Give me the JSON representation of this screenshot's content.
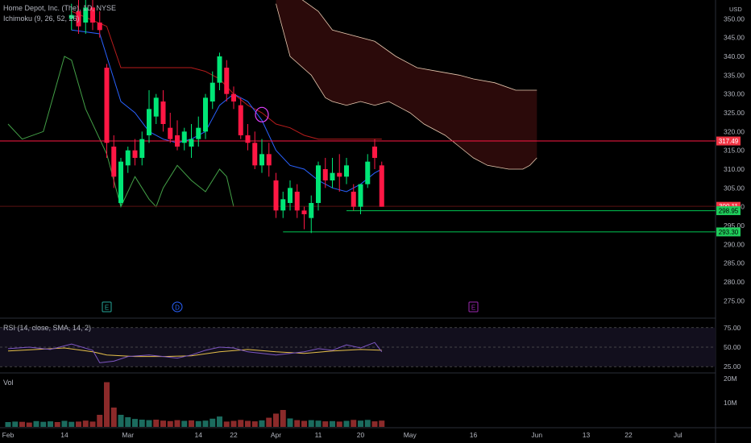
{
  "header": {
    "symbol_title": "Home Depot, Inc. (The), 1D, NYSE",
    "ichimoku_label": "Ichimoku (9, 26, 52, 26)",
    "currency": "USD"
  },
  "rsi_panel": {
    "label": "RSI (14, close, SMA, 14, 2)"
  },
  "volume_panel": {
    "label": "Vol"
  },
  "colors": {
    "background": "#000000",
    "bull": "#00e676",
    "bear": "#ff1744",
    "cloud_fill": "#2b0a0a",
    "cloud_edge": "#e8c9b0",
    "tenkan": "#2962ff",
    "kijun": "#b71c1c",
    "lagging": "#43a047",
    "support_line": "#00c853",
    "rsi_line": "#7e57c2",
    "rsi_sma": "#e6c04a",
    "vol_bull": "#1b6b5e",
    "vol_bear": "#8b2a2a",
    "axis_text": "#b2b5be"
  },
  "chart_data": {
    "type": "candlestick",
    "title": "Home Depot, Inc. (The), 1D, NYSE",
    "price_axis_ticks": [
      350,
      345,
      340,
      335,
      330,
      325,
      320,
      315,
      310,
      305,
      300,
      295,
      290,
      285,
      280,
      275
    ],
    "price_ylim": [
      271,
      355
    ],
    "x_tick_labels": [
      {
        "label": "Feb",
        "index": 0
      },
      {
        "label": "14",
        "index": 8
      },
      {
        "label": "Mar",
        "index": 17
      },
      {
        "label": "14",
        "index": 27
      },
      {
        "label": "22",
        "index": 32
      },
      {
        "label": "Apr",
        "index": 38
      },
      {
        "label": "11",
        "index": 44
      },
      {
        "label": "20",
        "index": 50
      },
      {
        "label": "May",
        "index": 57
      },
      {
        "label": "16",
        "index": 66
      },
      {
        "label": "Jun",
        "index": 75
      },
      {
        "label": "13",
        "index": 82
      },
      {
        "label": "22",
        "index": 88
      },
      {
        "label": "Jul",
        "index": 95
      }
    ],
    "candles": [
      {
        "i": 9,
        "o": 350,
        "h": 354,
        "l": 347,
        "c": 351
      },
      {
        "i": 10,
        "o": 352,
        "h": 356,
        "l": 346,
        "c": 348
      },
      {
        "i": 11,
        "o": 349,
        "h": 355,
        "l": 346,
        "c": 353
      },
      {
        "i": 12,
        "o": 353,
        "h": 355,
        "l": 347,
        "c": 349
      },
      {
        "i": 13,
        "o": 349,
        "h": 352,
        "l": 345,
        "c": 347
      },
      {
        "i": 14,
        "o": 337,
        "h": 338,
        "l": 313,
        "c": 317
      },
      {
        "i": 15,
        "o": 316,
        "h": 319,
        "l": 305,
        "c": 308
      },
      {
        "i": 16,
        "o": 301,
        "h": 313,
        "l": 300,
        "c": 312
      },
      {
        "i": 17,
        "o": 311,
        "h": 316,
        "l": 309,
        "c": 315
      },
      {
        "i": 18,
        "o": 315,
        "h": 318,
        "l": 311,
        "c": 313
      },
      {
        "i": 19,
        "o": 313,
        "h": 320,
        "l": 311,
        "c": 318
      },
      {
        "i": 20,
        "o": 319,
        "h": 331,
        "l": 317,
        "c": 326
      },
      {
        "i": 21,
        "o": 324,
        "h": 330,
        "l": 322,
        "c": 329
      },
      {
        "i": 22,
        "o": 328,
        "h": 331,
        "l": 320,
        "c": 322
      },
      {
        "i": 23,
        "o": 321,
        "h": 325,
        "l": 317,
        "c": 318
      },
      {
        "i": 24,
        "o": 319,
        "h": 323,
        "l": 315,
        "c": 316
      },
      {
        "i": 25,
        "o": 317,
        "h": 321,
        "l": 315,
        "c": 320
      },
      {
        "i": 26,
        "o": 316,
        "h": 322,
        "l": 313,
        "c": 318
      },
      {
        "i": 27,
        "o": 318,
        "h": 324,
        "l": 316,
        "c": 321
      },
      {
        "i": 28,
        "o": 320,
        "h": 330,
        "l": 318,
        "c": 329
      },
      {
        "i": 29,
        "o": 328,
        "h": 336,
        "l": 326,
        "c": 333
      },
      {
        "i": 30,
        "o": 333,
        "h": 341,
        "l": 331,
        "c": 340
      },
      {
        "i": 31,
        "o": 337,
        "h": 339,
        "l": 328,
        "c": 330
      },
      {
        "i": 32,
        "o": 330,
        "h": 332,
        "l": 326,
        "c": 328
      },
      {
        "i": 33,
        "o": 327,
        "h": 329,
        "l": 318,
        "c": 319
      },
      {
        "i": 34,
        "o": 319,
        "h": 322,
        "l": 315,
        "c": 317
      },
      {
        "i": 35,
        "o": 317,
        "h": 320,
        "l": 310,
        "c": 311
      },
      {
        "i": 36,
        "o": 311,
        "h": 318,
        "l": 309,
        "c": 314
      },
      {
        "i": 37,
        "o": 314,
        "h": 317,
        "l": 308,
        "c": 311
      },
      {
        "i": 38,
        "o": 307,
        "h": 309,
        "l": 297,
        "c": 299
      },
      {
        "i": 39,
        "o": 299,
        "h": 304,
        "l": 297,
        "c": 302
      },
      {
        "i": 40,
        "o": 301,
        "h": 307,
        "l": 299,
        "c": 305
      },
      {
        "i": 41,
        "o": 304,
        "h": 306,
        "l": 297,
        "c": 299
      },
      {
        "i": 42,
        "o": 299,
        "h": 300,
        "l": 294,
        "c": 298
      },
      {
        "i": 43,
        "o": 297,
        "h": 303,
        "l": 293,
        "c": 301
      },
      {
        "i": 44,
        "o": 301,
        "h": 312,
        "l": 299,
        "c": 311
      },
      {
        "i": 45,
        "o": 310,
        "h": 313,
        "l": 305,
        "c": 307
      },
      {
        "i": 46,
        "o": 307,
        "h": 313,
        "l": 305,
        "c": 309
      },
      {
        "i": 47,
        "o": 309,
        "h": 314,
        "l": 304,
        "c": 308
      },
      {
        "i": 48,
        "o": 308,
        "h": 313,
        "l": 306,
        "c": 311
      },
      {
        "i": 49,
        "o": 304,
        "h": 306,
        "l": 299,
        "c": 300
      },
      {
        "i": 50,
        "o": 300,
        "h": 306,
        "l": 298,
        "c": 306
      },
      {
        "i": 51,
        "o": 306,
        "h": 314,
        "l": 305,
        "c": 312
      },
      {
        "i": 52,
        "o": 316,
        "h": 318,
        "l": 310,
        "c": 313
      },
      {
        "i": 53,
        "o": 311,
        "h": 312,
        "l": 300,
        "c": 300
      }
    ],
    "ichimoku": {
      "tenkan": [
        [
          9,
          347
        ],
        [
          13,
          346
        ],
        [
          14,
          340
        ],
        [
          16,
          328
        ],
        [
          18,
          325
        ],
        [
          20,
          320
        ],
        [
          22,
          318
        ],
        [
          24,
          317
        ],
        [
          26,
          318
        ],
        [
          28,
          320
        ],
        [
          30,
          327
        ],
        [
          32,
          330
        ],
        [
          34,
          328
        ],
        [
          36,
          323
        ],
        [
          38,
          315
        ],
        [
          40,
          311
        ],
        [
          42,
          310
        ],
        [
          44,
          307
        ],
        [
          46,
          305
        ],
        [
          48,
          304
        ],
        [
          50,
          306
        ],
        [
          52,
          309
        ],
        [
          53,
          310
        ]
      ],
      "kijun": [
        [
          9,
          352
        ],
        [
          14,
          348
        ],
        [
          16,
          337
        ],
        [
          26,
          337
        ],
        [
          28,
          336
        ],
        [
          30,
          334
        ],
        [
          32,
          330
        ],
        [
          34,
          327
        ],
        [
          36,
          325
        ],
        [
          38,
          322
        ],
        [
          40,
          321
        ],
        [
          42,
          319
        ],
        [
          44,
          318
        ],
        [
          48,
          318
        ],
        [
          53,
          318
        ]
      ],
      "lagging": [
        [
          0,
          322
        ],
        [
          2,
          318
        ],
        [
          5,
          320
        ],
        [
          8,
          340
        ],
        [
          9,
          339
        ],
        [
          11,
          326
        ],
        [
          14,
          314
        ],
        [
          16,
          300
        ],
        [
          18,
          308
        ],
        [
          20,
          302
        ],
        [
          21,
          300
        ],
        [
          22,
          305
        ],
        [
          24,
          311
        ],
        [
          26,
          307
        ],
        [
          28,
          304
        ],
        [
          30,
          310
        ],
        [
          31,
          308
        ],
        [
          32,
          300
        ]
      ],
      "cloud_upper": [
        [
          38,
          362
        ],
        [
          41,
          356
        ],
        [
          44,
          352
        ],
        [
          46,
          347
        ],
        [
          52,
          344
        ],
        [
          55,
          340
        ],
        [
          58,
          337
        ],
        [
          61,
          336
        ],
        [
          64,
          335
        ],
        [
          66,
          334
        ],
        [
          69,
          333
        ],
        [
          72,
          331
        ],
        [
          75,
          331
        ]
      ],
      "cloud_lower": [
        [
          38,
          354
        ],
        [
          40,
          340
        ],
        [
          43,
          335
        ],
        [
          45,
          329
        ],
        [
          46,
          328
        ],
        [
          48,
          327
        ],
        [
          50,
          328
        ],
        [
          52,
          327
        ],
        [
          54,
          328
        ],
        [
          56,
          326
        ],
        [
          57,
          325
        ],
        [
          59,
          322
        ],
        [
          62,
          319
        ],
        [
          64,
          316
        ],
        [
          66,
          313
        ],
        [
          68,
          311
        ],
        [
          71,
          310
        ],
        [
          73,
          310
        ],
        [
          74,
          311
        ],
        [
          75,
          313
        ]
      ]
    },
    "horizontal_levels": [
      {
        "price": 317.49,
        "label": "317.49",
        "style": "red"
      },
      {
        "price": 300.11,
        "label": "300.11",
        "style": "red"
      },
      {
        "price": 298.95,
        "label": "298.95",
        "style": "green"
      },
      {
        "price": 293.3,
        "label": "293.30",
        "style": "green"
      }
    ],
    "event_markers": [
      {
        "index": 14,
        "letter": "E",
        "color": "#26a69a"
      },
      {
        "index": 24,
        "letter": "D",
        "color": "#2962ff"
      },
      {
        "index": 66,
        "letter": "E",
        "color": "#9c27b0"
      }
    ],
    "rsi": {
      "ticks": [
        75,
        50,
        25
      ],
      "ylim": [
        18,
        82
      ],
      "values": [
        [
          0,
          48
        ],
        [
          3,
          50
        ],
        [
          6,
          47
        ],
        [
          9,
          54
        ],
        [
          12,
          46
        ],
        [
          13,
          30
        ],
        [
          15,
          32
        ],
        [
          17,
          38
        ],
        [
          20,
          40
        ],
        [
          22,
          38
        ],
        [
          24,
          36
        ],
        [
          26,
          40
        ],
        [
          28,
          46
        ],
        [
          30,
          50
        ],
        [
          32,
          49
        ],
        [
          34,
          44
        ],
        [
          36,
          42
        ],
        [
          38,
          40
        ],
        [
          40,
          42
        ],
        [
          42,
          44
        ],
        [
          44,
          48
        ],
        [
          46,
          46
        ],
        [
          48,
          53
        ],
        [
          50,
          49
        ],
        [
          52,
          56
        ],
        [
          53,
          44
        ]
      ],
      "sma": [
        [
          0,
          45
        ],
        [
          4,
          47
        ],
        [
          8,
          49
        ],
        [
          12,
          44
        ],
        [
          14,
          40
        ],
        [
          18,
          38
        ],
        [
          22,
          38
        ],
        [
          26,
          39
        ],
        [
          30,
          44
        ],
        [
          34,
          47
        ],
        [
          38,
          44
        ],
        [
          42,
          42
        ],
        [
          46,
          45
        ],
        [
          50,
          47
        ],
        [
          53,
          46
        ]
      ]
    },
    "volume": {
      "ticks": [
        "20M",
        "10M"
      ],
      "ylim": [
        0,
        22
      ],
      "bars": [
        {
          "i": 0,
          "v": 2,
          "d": "up"
        },
        {
          "i": 1,
          "v": 2.2,
          "d": "up"
        },
        {
          "i": 2,
          "v": 2.1,
          "d": "dn"
        },
        {
          "i": 3,
          "v": 1.8,
          "d": "dn"
        },
        {
          "i": 4,
          "v": 2.4,
          "d": "up"
        },
        {
          "i": 5,
          "v": 2.1,
          "d": "up"
        },
        {
          "i": 6,
          "v": 2.3,
          "d": "up"
        },
        {
          "i": 7,
          "v": 2,
          "d": "dn"
        },
        {
          "i": 8,
          "v": 2.5,
          "d": "up"
        },
        {
          "i": 9,
          "v": 2.1,
          "d": "up"
        },
        {
          "i": 10,
          "v": 2.2,
          "d": "dn"
        },
        {
          "i": 11,
          "v": 2.6,
          "d": "dn"
        },
        {
          "i": 12,
          "v": 2.2,
          "d": "dn"
        },
        {
          "i": 13,
          "v": 5,
          "d": "dn"
        },
        {
          "i": 14,
          "v": 18.5,
          "d": "dn"
        },
        {
          "i": 15,
          "v": 8,
          "d": "dn"
        },
        {
          "i": 16,
          "v": 5,
          "d": "up"
        },
        {
          "i": 17,
          "v": 4,
          "d": "up"
        },
        {
          "i": 18,
          "v": 3.3,
          "d": "up"
        },
        {
          "i": 19,
          "v": 3,
          "d": "up"
        },
        {
          "i": 20,
          "v": 2.8,
          "d": "up"
        },
        {
          "i": 21,
          "v": 3,
          "d": "dn"
        },
        {
          "i": 22,
          "v": 2.6,
          "d": "dn"
        },
        {
          "i": 23,
          "v": 2.4,
          "d": "dn"
        },
        {
          "i": 24,
          "v": 2.8,
          "d": "dn"
        },
        {
          "i": 25,
          "v": 2.5,
          "d": "up"
        },
        {
          "i": 26,
          "v": 2.7,
          "d": "dn"
        },
        {
          "i": 27,
          "v": 2.4,
          "d": "up"
        },
        {
          "i": 28,
          "v": 2.6,
          "d": "up"
        },
        {
          "i": 29,
          "v": 3.4,
          "d": "up"
        },
        {
          "i": 30,
          "v": 4.3,
          "d": "up"
        },
        {
          "i": 31,
          "v": 2.2,
          "d": "dn"
        },
        {
          "i": 32,
          "v": 2.5,
          "d": "dn"
        },
        {
          "i": 33,
          "v": 2.9,
          "d": "dn"
        },
        {
          "i": 34,
          "v": 2.5,
          "d": "dn"
        },
        {
          "i": 35,
          "v": 2.3,
          "d": "dn"
        },
        {
          "i": 36,
          "v": 2.7,
          "d": "up"
        },
        {
          "i": 37,
          "v": 3.8,
          "d": "dn"
        },
        {
          "i": 38,
          "v": 5.5,
          "d": "dn"
        },
        {
          "i": 39,
          "v": 7,
          "d": "dn"
        },
        {
          "i": 40,
          "v": 3.5,
          "d": "up"
        },
        {
          "i": 41,
          "v": 2.8,
          "d": "dn"
        },
        {
          "i": 42,
          "v": 2.5,
          "d": "dn"
        },
        {
          "i": 43,
          "v": 2.8,
          "d": "up"
        },
        {
          "i": 44,
          "v": 2.6,
          "d": "up"
        },
        {
          "i": 45,
          "v": 2.3,
          "d": "dn"
        },
        {
          "i": 46,
          "v": 2.4,
          "d": "up"
        },
        {
          "i": 47,
          "v": 2.2,
          "d": "dn"
        },
        {
          "i": 48,
          "v": 2.5,
          "d": "up"
        },
        {
          "i": 49,
          "v": 2.9,
          "d": "dn"
        },
        {
          "i": 50,
          "v": 2.6,
          "d": "up"
        },
        {
          "i": 51,
          "v": 2.9,
          "d": "up"
        },
        {
          "i": 52,
          "v": 2.3,
          "d": "dn"
        },
        {
          "i": 53,
          "v": 2.6,
          "d": "dn"
        }
      ]
    }
  }
}
